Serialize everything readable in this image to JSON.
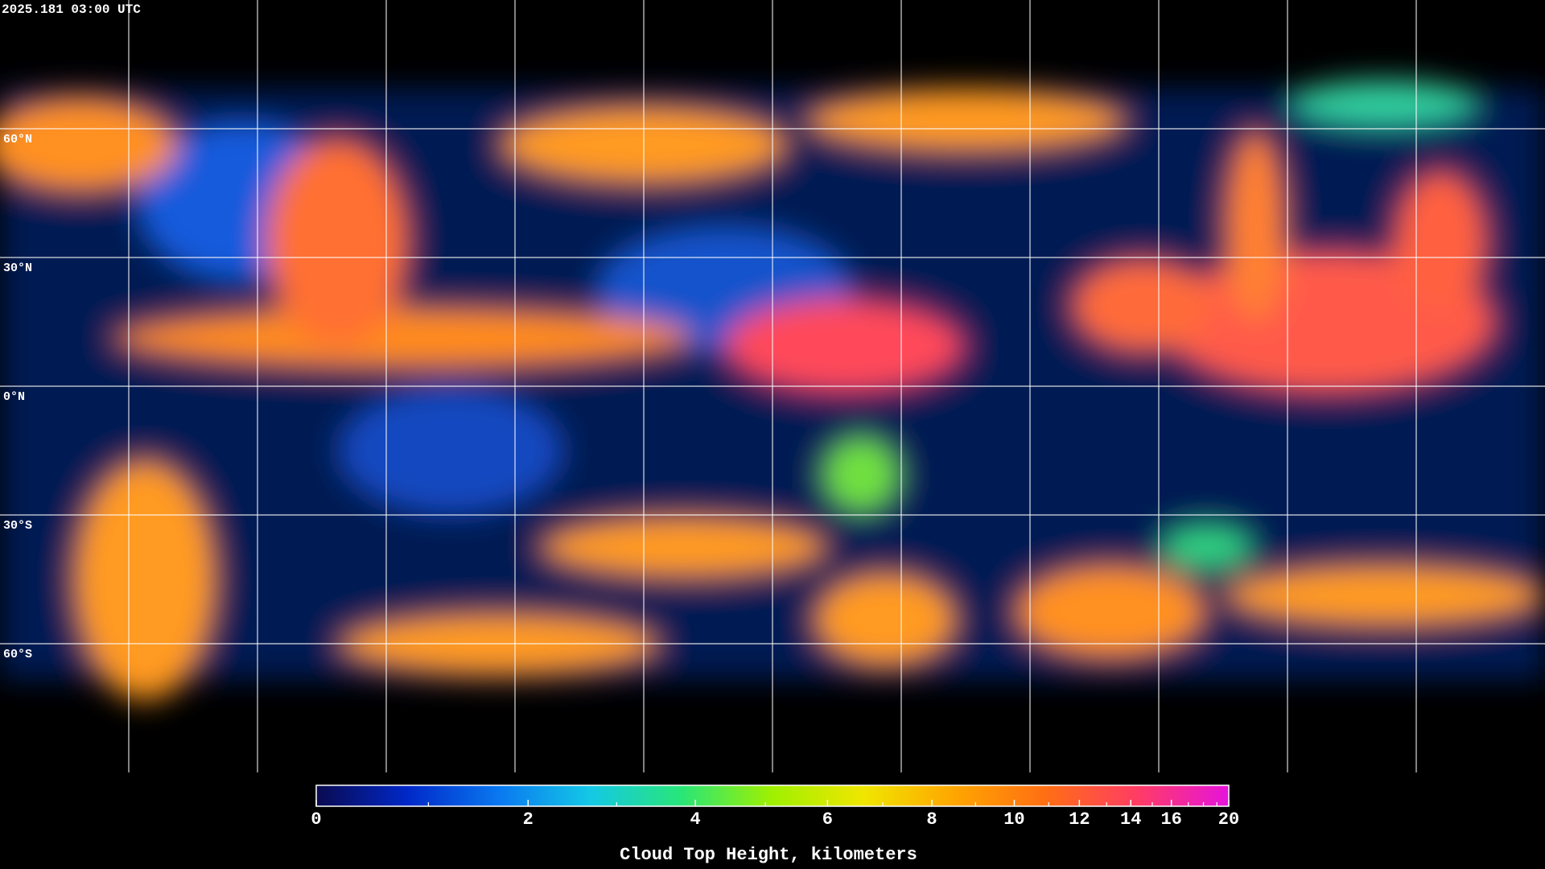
{
  "timestamp": "2025.181 03:00 UTC",
  "map": {
    "parallels": [
      {
        "value": 60,
        "label": "60°N"
      },
      {
        "value": 30,
        "label": "30°N"
      },
      {
        "value": 0,
        "label": "0°N"
      },
      {
        "value": -30,
        "label": "30°S"
      },
      {
        "value": -60,
        "label": "60°S"
      }
    ],
    "meridians": [
      -150,
      -120,
      -90,
      -60,
      -30,
      0,
      30,
      60,
      90,
      120,
      150
    ]
  },
  "colorbar": {
    "title": "Cloud Top Height, kilometers",
    "lim": [
      0,
      20
    ],
    "ticks": [
      0,
      2,
      4,
      6,
      8,
      10,
      12,
      14,
      16,
      20
    ],
    "minor_ticks": [
      1,
      3,
      5,
      7,
      9,
      11,
      13,
      15,
      17,
      18,
      19
    ],
    "colormap": [
      "#0a0a50",
      "#0028c8",
      "#0a78f0",
      "#14c8e6",
      "#28e678",
      "#a0f000",
      "#f0e600",
      "#ffa500",
      "#ff6e14",
      "#ff3c64",
      "#e614dc"
    ]
  }
}
